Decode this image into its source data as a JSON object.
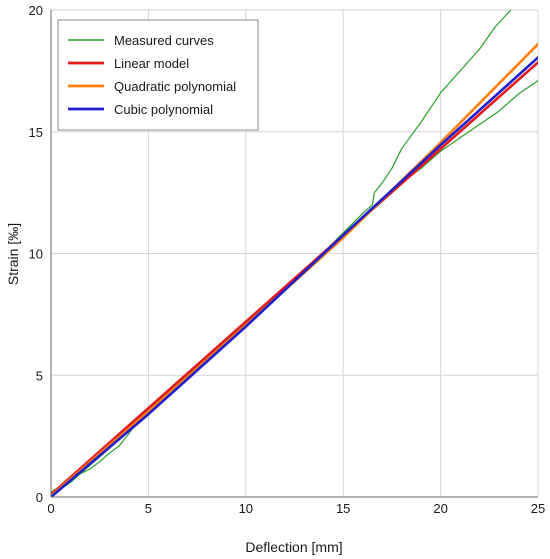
{
  "chart_data": {
    "type": "line",
    "xlabel": "Deflection [mm]",
    "ylabel": "Strain [‰]",
    "xlim": [
      0,
      25
    ],
    "ylim": [
      0,
      20
    ],
    "xticks": [
      0,
      5,
      10,
      15,
      20,
      25
    ],
    "yticks": [
      0,
      5,
      10,
      15,
      20
    ],
    "grid": true,
    "legend_position": "top-left",
    "series": [
      {
        "name": "Measured curves",
        "color": "#2ca02c",
        "style": "thin",
        "curves": [
          [
            [
              0,
              0.2
            ],
            [
              0.5,
              0.45
            ],
            [
              1,
              0.7
            ],
            [
              1.5,
              0.95
            ],
            [
              2,
              1.15
            ],
            [
              2.5,
              1.45
            ],
            [
              3,
              1.8
            ],
            [
              3.5,
              2.1
            ],
            [
              4,
              2.6
            ],
            [
              4.5,
              3.2
            ],
            [
              5,
              3.6
            ],
            [
              6,
              4.3
            ],
            [
              7,
              5.0
            ],
            [
              8,
              5.65
            ],
            [
              9,
              6.35
            ],
            [
              10,
              7.05
            ],
            [
              11,
              7.8
            ],
            [
              12,
              8.5
            ],
            [
              13,
              9.25
            ],
            [
              14,
              10.05
            ],
            [
              15,
              10.85
            ],
            [
              16,
              11.65
            ],
            [
              16.5,
              12.0
            ],
            [
              16.6,
              12.5
            ],
            [
              17,
              12.9
            ],
            [
              17.5,
              13.5
            ],
            [
              18,
              14.3
            ],
            [
              19,
              15.4
            ],
            [
              20,
              16.6
            ],
            [
              21,
              17.5
            ],
            [
              22,
              18.4
            ],
            [
              22.8,
              19.3
            ],
            [
              23.6,
              20.0
            ]
          ],
          [
            [
              0,
              0.05
            ],
            [
              1,
              0.6
            ],
            [
              2,
              1.3
            ],
            [
              3,
              2.0
            ],
            [
              4,
              2.7
            ],
            [
              5,
              3.45
            ],
            [
              6,
              4.2
            ],
            [
              7,
              4.95
            ],
            [
              8,
              5.7
            ],
            [
              9,
              6.4
            ],
            [
              10,
              7.1
            ],
            [
              11,
              7.85
            ],
            [
              12,
              8.55
            ],
            [
              13,
              9.3
            ],
            [
              14,
              10.05
            ],
            [
              15,
              10.8
            ],
            [
              16,
              11.5
            ],
            [
              17,
              12.15
            ],
            [
              18,
              12.9
            ],
            [
              19,
              13.5
            ],
            [
              20,
              14.2
            ],
            [
              21,
              14.75
            ],
            [
              22,
              15.3
            ],
            [
              23,
              15.85
            ],
            [
              24,
              16.55
            ],
            [
              25,
              17.1
            ]
          ]
        ]
      },
      {
        "name": "Linear model",
        "color": "#e31a1c",
        "points": [
          [
            0,
            0.1
          ],
          [
            25,
            17.85
          ]
        ]
      },
      {
        "name": "Quadratic polynomial",
        "color": "#ff7f0e",
        "points": [
          [
            0,
            0.05
          ],
          [
            5,
            3.5
          ],
          [
            10,
            7.05
          ],
          [
            15,
            10.65
          ],
          [
            20,
            14.55
          ],
          [
            25,
            18.6
          ]
        ]
      },
      {
        "name": "Cubic polynomial",
        "color": "#1f1fcf",
        "points": [
          [
            0,
            0.0
          ],
          [
            5,
            3.4
          ],
          [
            10,
            7.0
          ],
          [
            15,
            10.75
          ],
          [
            20,
            14.45
          ],
          [
            25,
            18.05
          ]
        ]
      }
    ]
  }
}
